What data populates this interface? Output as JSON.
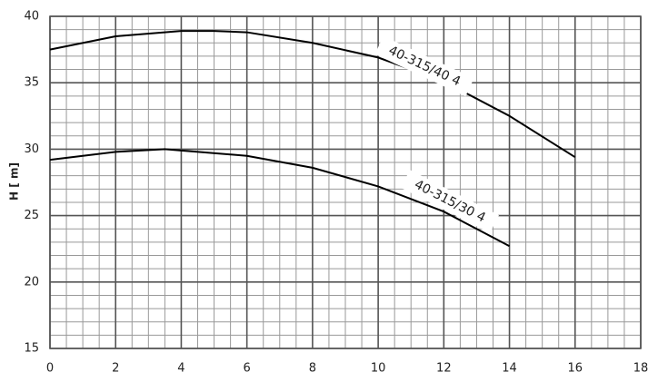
{
  "chart_data": {
    "type": "line",
    "y_label": "H [ m]",
    "xlim": [
      0,
      18
    ],
    "xticks": [
      0,
      2,
      4,
      6,
      8,
      10,
      12,
      14,
      16,
      18
    ],
    "ylim": [
      15,
      40
    ],
    "yticks": [
      15,
      20,
      25,
      30,
      35,
      40
    ],
    "grid": true,
    "series": [
      {
        "name": "40-315/40 4",
        "color": "#000000",
        "x": [
          0,
          2,
          4,
          5,
          6,
          8,
          10,
          12,
          14,
          16
        ],
        "values": [
          37.5,
          38.5,
          38.9,
          38.9,
          38.8,
          38.0,
          36.9,
          35.1,
          32.5,
          29.4
        ]
      },
      {
        "name": "40-315/30 4",
        "color": "#000000",
        "x": [
          0,
          2,
          3.5,
          4,
          6,
          8,
          10,
          12,
          14
        ],
        "values": [
          29.2,
          29.8,
          30.0,
          29.9,
          29.5,
          28.6,
          27.2,
          25.3,
          22.7
        ]
      }
    ]
  }
}
